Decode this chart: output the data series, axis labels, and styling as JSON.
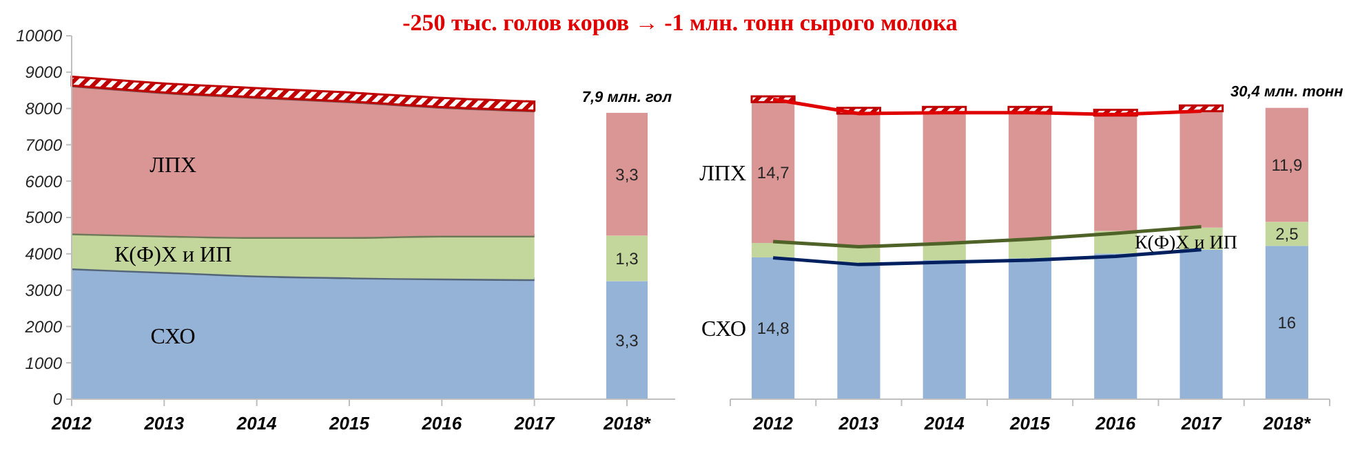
{
  "chart_data": [
    {
      "type": "area",
      "stacked": true,
      "title": "-250 тыс. голов коров → -1 млн. тонн сырого молока",
      "categories": [
        "2012",
        "2013",
        "2014",
        "2015",
        "2016",
        "2017",
        "2018*"
      ],
      "ylim": [
        0,
        10000
      ],
      "yticks": [
        0,
        1000,
        2000,
        3000,
        4000,
        5000,
        6000,
        7000,
        8000,
        9000,
        10000
      ],
      "series": [
        {
          "name": "СХО",
          "color": "#95b3d7",
          "values": [
            3600,
            3500,
            3400,
            3350,
            3320,
            3300,
            null
          ]
        },
        {
          "name": "К(Ф)Х и ИП",
          "color": "#c3d69b",
          "values": [
            960,
            1000,
            1060,
            1110,
            1180,
            1200,
            null
          ]
        },
        {
          "name": "ЛПХ",
          "color": "#d99694",
          "values": [
            4070,
            3940,
            3850,
            3730,
            3540,
            3440,
            null
          ]
        },
        {
          "color": "#c00000",
          "values": [
            250,
            250,
            250,
            250,
            250,
            250,
            null
          ]
        },
        {
          "type": "bar",
          "color": "#95b3d7",
          "values": [
            null,
            null,
            null,
            null,
            null,
            null,
            3250
          ]
        },
        {
          "type": "bar",
          "color": "#c3d69b",
          "values": [
            null,
            null,
            null,
            null,
            null,
            null,
            1250
          ]
        },
        {
          "type": "bar",
          "color": "#d99694",
          "values": [
            null,
            null,
            null,
            null,
            null,
            null,
            3380
          ]
        }
      ],
      "annotations": [
        "3,3",
        "1,3",
        "3,3",
        {
          "text": "7,9 млн. гол",
          "x": "2018*",
          "y": 7880
        }
      ]
    },
    {
      "type": "bar",
      "stacked": true,
      "categories": [
        "2012",
        "2013",
        "2014",
        "2015",
        "2016",
        "2017",
        "2018*"
      ],
      "tick_labels": "x",
      "series": [
        {
          "name": "СХО",
          "color": "#95b3d7",
          "values": [
            14.8,
            14.2,
            14.5,
            14.7,
            15.2,
            15.6,
            16
          ],
          "value_labels": [
            "14,8",
            null,
            null,
            null,
            null,
            null,
            "16"
          ]
        },
        {
          "name": "К(Ф)Х и ИП",
          "color": "#c3d69b",
          "values": [
            1.5,
            1.7,
            1.85,
            2.1,
            2.35,
            2.3,
            2.5
          ],
          "value_labels": [
            null,
            null,
            null,
            null,
            null,
            null,
            "2,5"
          ]
        },
        {
          "name": "ЛПХ",
          "color": "#d99694",
          "values": [
            14.7,
            13.9,
            13.55,
            13.1,
            12.05,
            12.15,
            11.9
          ],
          "value_labels": [
            "14,7",
            null,
            null,
            null,
            null,
            null,
            "11,9"
          ]
        },
        {
          "color": "#c00000",
          "values": [
            0.6,
            0.6,
            0.6,
            0.6,
            0.6,
            0.6,
            null
          ]
        },
        {
          "type": "line",
          "color": "#002060",
          "values": [
            14.75,
            14.05,
            14.3,
            14.5,
            14.9,
            15.6,
            null
          ]
        },
        {
          "type": "line",
          "color": "#4f6228",
          "values": [
            16.45,
            15.9,
            16.25,
            16.7,
            17.3,
            18.0,
            null
          ]
        },
        {
          "type": "line",
          "color": "#e00000",
          "values": [
            31.3,
            29.8,
            29.9,
            29.9,
            29.7,
            30.05,
            null
          ]
        }
      ],
      "totals": [
        null,
        null,
        null,
        null,
        null,
        null,
        "30,4 млн. тонн"
      ]
    }
  ]
}
